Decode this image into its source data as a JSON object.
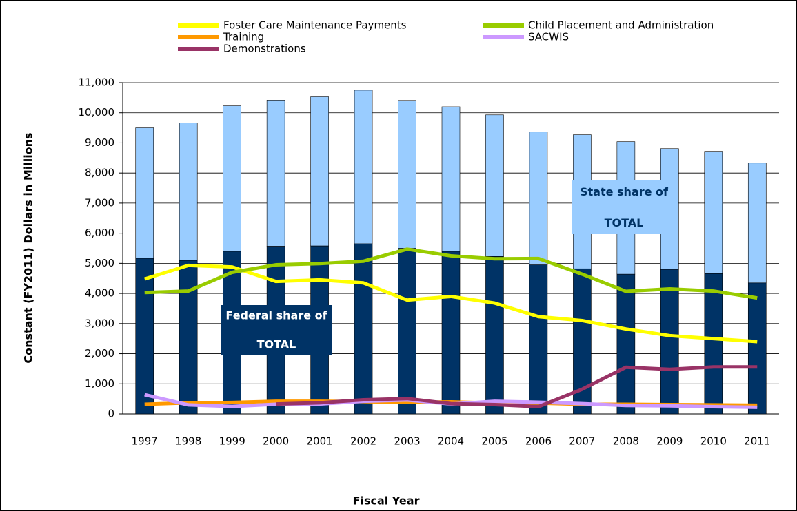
{
  "chart_data": {
    "type": "bar",
    "stacked": true,
    "xlabel": "Fiscal Year",
    "ylabel": "Constant (FY2011) Dollars in Millions",
    "categories": [
      "1997",
      "1998",
      "1999",
      "2000",
      "2001",
      "2002",
      "2003",
      "2004",
      "2005",
      "2006",
      "2007",
      "2008",
      "2009",
      "2010",
      "2011"
    ],
    "series": [
      {
        "type": "bar",
        "color": "#003366",
        "values": [
          5170,
          5100,
          5400,
          5570,
          5580,
          5650,
          5500,
          5400,
          5230,
          4950,
          4820,
          4640,
          4800,
          4660,
          4350
        ]
      },
      {
        "type": "bar",
        "color": "#99ccff",
        "values": [
          4330,
          4560,
          4830,
          4850,
          4950,
          5100,
          4910,
          4800,
          4700,
          4410,
          4450,
          4400,
          4010,
          4060,
          3980
        ]
      },
      {
        "type": "line",
        "name": "Foster Care Maintenance Payments",
        "color": "#ffff00",
        "values": [
          4480,
          4930,
          4880,
          4400,
          4450,
          4350,
          3780,
          3900,
          3680,
          3230,
          3100,
          2820,
          2600,
          2500,
          2400
        ]
      },
      {
        "type": "line",
        "name": "Child Placement and Administration",
        "color": "#99cc00",
        "values": [
          4030,
          4080,
          4700,
          4950,
          4990,
          5070,
          5470,
          5250,
          5150,
          5160,
          4640,
          4070,
          4150,
          4080,
          3850
        ]
      },
      {
        "type": "line",
        "name": "Training",
        "color": "#ff9900",
        "values": [
          320,
          370,
          380,
          420,
          420,
          410,
          380,
          400,
          360,
          360,
          320,
          320,
          310,
          300,
          290
        ]
      },
      {
        "type": "line",
        "name": "SACWIS",
        "color": "#cc99ff",
        "values": [
          640,
          300,
          250,
          320,
          330,
          420,
          460,
          330,
          420,
          390,
          340,
          280,
          270,
          240,
          220
        ]
      },
      {
        "type": "line",
        "name": "Demonstrations",
        "color": "#993366",
        "values": [
          null,
          null,
          null,
          330,
          370,
          470,
          510,
          340,
          310,
          240,
          820,
          1550,
          1480,
          1560,
          1560
        ]
      }
    ],
    "annotations": [
      {
        "lines": [
          "Federal share of",
          "TOTAL"
        ]
      },
      {
        "lines": [
          "State share of",
          "TOTAL"
        ]
      }
    ],
    "ylim": [
      0,
      11000
    ],
    "yticks": [
      0,
      {
        "value": 1000,
        "label": "1,000"
      },
      {
        "value": 2000,
        "label": "2,000"
      },
      {
        "value": 3000,
        "label": "3,000"
      },
      {
        "value": 4000,
        "label": "4,000"
      },
      {
        "value": 5000,
        "label": "5,000"
      },
      {
        "value": 6000,
        "label": "6,000"
      },
      {
        "value": 7000,
        "label": "7,000"
      },
      {
        "value": 8000,
        "label": "8,000"
      },
      {
        "value": 9000,
        "label": "9,000"
      },
      {
        "value": 10000,
        "label": "10,000"
      },
      {
        "value": 11000,
        "label": "11,000"
      }
    ],
    "grid": true
  }
}
